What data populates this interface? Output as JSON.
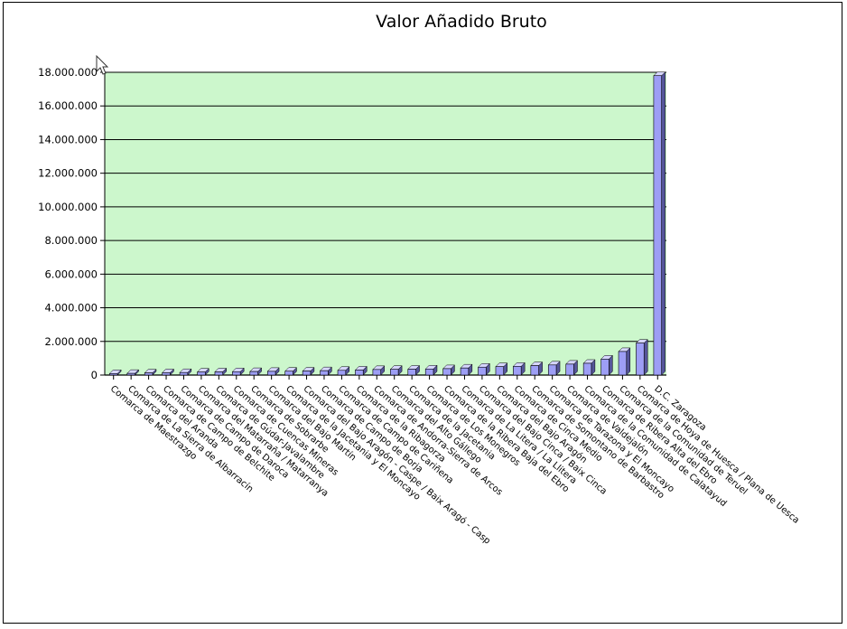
{
  "chart_data": {
    "type": "bar",
    "title": "Valor Añadido Bruto",
    "xlabel": "",
    "ylabel": "",
    "ylim": [
      0,
      18000000
    ],
    "yticks": [
      0,
      2000000,
      4000000,
      6000000,
      8000000,
      10000000,
      12000000,
      14000000,
      16000000,
      18000000
    ],
    "ytick_labels": [
      "0",
      "2.000.000",
      "4.000.000",
      "6.000.000",
      "8.000.000",
      "10.000.000",
      "12.000.000",
      "14.000.000",
      "16.000.000",
      "18.000.000"
    ],
    "grid": true,
    "legend": "none",
    "colors": {
      "plot_bg": "#ccf7cc",
      "bar": "#9d9ef5",
      "bar_dark": "#55559a",
      "bar_light": "#d6d6ff",
      "grid": "#000000"
    },
    "categories": [
      "Comarca de Maestrazgo",
      "Comarca de La Sierra de Albarracín",
      "Comarca del Aranda",
      "Comarca de Campo de Belchite",
      "Comarca de Campo de Daroca",
      "Comarca del Matarraña / Matarranya",
      "Comarca de Gúdar-Javalambre",
      "Comarca de Cuencas Mineras",
      "Comarca de Sobrarbe",
      "Comarca del Bajo Martín",
      "Comarca de la Jacetania y El Moncayo",
      "Comarca del Bajo Aragón - Caspe / Baix Aragó - Casp",
      "Comarca de Campo de Borja",
      "Comarca de Campo de Cariñena",
      "Comarca de la Ribagorza",
      "Comarca de Andorra-Sierra de Arcos",
      "Comarca del Alto Gállego",
      "Comarca de la Jacetania",
      "Comarca de Los Monegros",
      "Comarca de la Ribera Baja del Ebro",
      "Comarca de La Litera / La Llitera",
      "Comarca del Bajo Cinca / Baix Cinca",
      "Comarca del Bajo Aragón",
      "Comarca de Cinca Medio",
      "Comarca de Somontano de Barbastro",
      "Comarca de Tarazona y El Moncayo",
      "Comarca de Valdejalón",
      "Comarca de la Comunidad de Calatayud",
      "Comarca de Ribera Alta del Ebro",
      "Comarca de la Comunidad de Teruel",
      "Comarca de Hoya de Huesca / Plana de Uesca",
      "D.C. Zaragoza"
    ],
    "values": [
      90000,
      100000,
      130000,
      140000,
      150000,
      180000,
      190000,
      200000,
      210000,
      220000,
      230000,
      240000,
      260000,
      280000,
      300000,
      330000,
      340000,
      350000,
      360000,
      380000,
      420000,
      470000,
      500000,
      520000,
      560000,
      600000,
      650000,
      700000,
      950000,
      1400000,
      1900000,
      17800000
    ]
  }
}
